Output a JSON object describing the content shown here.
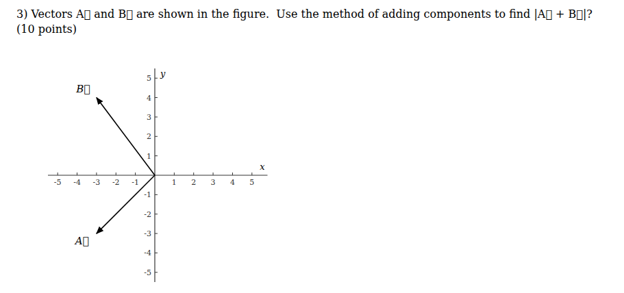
{
  "chart_data": {
    "type": "vector",
    "title": "3) Vectors A⃗ and B⃗ are shown in the figure.  Use the method of adding components to find |A⃗ + B⃗|? (10 points)",
    "x_label": "x",
    "y_label": "y",
    "xlim": [
      -5.5,
      5.8
    ],
    "ylim": [
      -5.5,
      5.5
    ],
    "xticks": [
      -5,
      -4,
      -3,
      -2,
      -1,
      1,
      2,
      3,
      4,
      5
    ],
    "yticks": [
      -5,
      -4,
      -3,
      -2,
      -1,
      1,
      2,
      3,
      4,
      5
    ],
    "series": [
      {
        "name": "B⃗",
        "color": "#000000",
        "x": [
          -3
        ],
        "values": [
          4
        ]
      },
      {
        "name": "A⃗",
        "color": "#000000",
        "x": [
          -3
        ],
        "values": [
          -3
        ]
      }
    ]
  }
}
